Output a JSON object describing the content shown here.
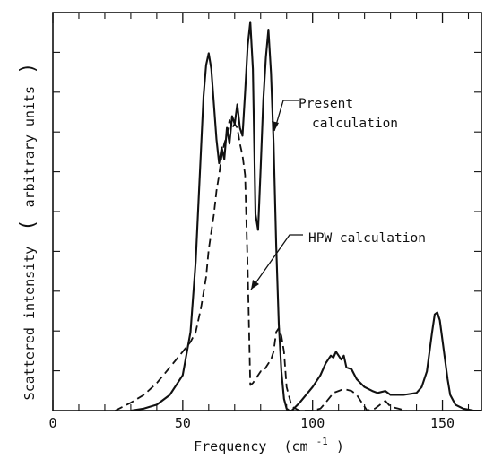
{
  "chart_data": {
    "type": "line",
    "title": "",
    "xlabel": "Frequency",
    "xlabel_unit_base": "(cm",
    "xlabel_unit_exp": "-1",
    "xlabel_unit_close": ")",
    "ylabel": "Scattered intensity",
    "ylabel_unit": "arbitrary units",
    "xlim": [
      0,
      165
    ],
    "ylim": [
      0,
      1.0
    ],
    "x_tick_labels": [
      "0",
      "50",
      "100",
      "150"
    ],
    "x_major_ticks": [
      0,
      50,
      100,
      150
    ],
    "x_minor_ticks": [
      10,
      20,
      30,
      40,
      60,
      70,
      80,
      90,
      110,
      120,
      130,
      140,
      160
    ],
    "y_tick_count": 10,
    "grid": false,
    "annotations": [
      {
        "text_lines": [
          "Present",
          "calculation"
        ],
        "points_to": "solid"
      },
      {
        "text_lines": [
          "HPW calculation"
        ],
        "points_to": "dashed"
      }
    ],
    "series": [
      {
        "style": "solid",
        "x": [
          30,
          35,
          40,
          45,
          50,
          53,
          55,
          57,
          58,
          59,
          60,
          61,
          62,
          63,
          64,
          65,
          66,
          67,
          68,
          69,
          70,
          71,
          72,
          73,
          74,
          75,
          76,
          77,
          78,
          79,
          80,
          81,
          82,
          83,
          84,
          85,
          86,
          87,
          88,
          89,
          90,
          91,
          92,
          95,
          100,
          103,
          105,
          107,
          108,
          109,
          110,
          111,
          112,
          113,
          115,
          117,
          120,
          123,
          125,
          128,
          130,
          135,
          140,
          142,
          144,
          145,
          146,
          147,
          148,
          149,
          150,
          151,
          152,
          153,
          155,
          158,
          162,
          165
        ],
        "y": [
          0.0,
          0.005,
          0.015,
          0.04,
          0.09,
          0.2,
          0.38,
          0.66,
          0.8,
          0.88,
          0.91,
          0.87,
          0.78,
          0.69,
          0.63,
          0.67,
          0.64,
          0.72,
          0.68,
          0.75,
          0.73,
          0.78,
          0.72,
          0.7,
          0.81,
          0.93,
          0.99,
          0.87,
          0.5,
          0.46,
          0.62,
          0.79,
          0.9,
          0.97,
          0.86,
          0.68,
          0.42,
          0.22,
          0.1,
          0.03,
          0.005,
          0.0,
          0.0,
          0.02,
          0.06,
          0.09,
          0.12,
          0.14,
          0.135,
          0.15,
          0.14,
          0.13,
          0.14,
          0.11,
          0.105,
          0.08,
          0.06,
          0.05,
          0.045,
          0.05,
          0.04,
          0.04,
          0.045,
          0.06,
          0.1,
          0.15,
          0.2,
          0.245,
          0.25,
          0.23,
          0.18,
          0.13,
          0.08,
          0.04,
          0.015,
          0.005,
          0.0,
          0.0
        ]
      },
      {
        "style": "dashed",
        "x": [
          24,
          30,
          35,
          40,
          45,
          50,
          53,
          55,
          57,
          59,
          60,
          62,
          63,
          64,
          65,
          66,
          67,
          68,
          69,
          70,
          71,
          72,
          73,
          74,
          75,
          76,
          77,
          78,
          80,
          81,
          82,
          83,
          84,
          85,
          86,
          87,
          88,
          89,
          90,
          92,
          95,
          100,
          103,
          105,
          108,
          110,
          112,
          115,
          117,
          119,
          121,
          124,
          127,
          128,
          130,
          133,
          136
        ],
        "y": [
          0.0,
          0.02,
          0.04,
          0.07,
          0.11,
          0.15,
          0.175,
          0.2,
          0.26,
          0.34,
          0.41,
          0.5,
          0.56,
          0.6,
          0.65,
          0.68,
          0.7,
          0.74,
          0.72,
          0.73,
          0.72,
          0.68,
          0.65,
          0.6,
          0.36,
          0.065,
          0.07,
          0.08,
          0.1,
          0.1,
          0.11,
          0.12,
          0.13,
          0.15,
          0.2,
          0.21,
          0.19,
          0.15,
          0.06,
          0.01,
          0.0,
          0.0,
          0.005,
          0.02,
          0.045,
          0.05,
          0.055,
          0.05,
          0.04,
          0.02,
          0.0,
          0.005,
          0.02,
          0.025,
          0.01,
          0.005,
          0.0
        ]
      }
    ]
  }
}
